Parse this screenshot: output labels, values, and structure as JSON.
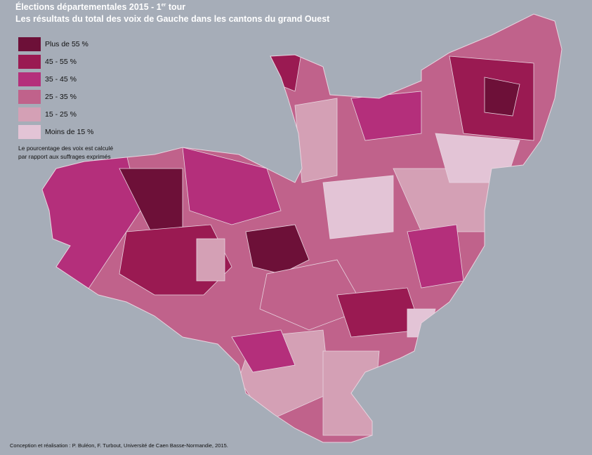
{
  "title": [
    "Élections départementales 2015 - 1",
    "er",
    " tour"
  ],
  "subtitle": "Les résultats du total des voix de Gauche dans les  cantons du grand Ouest",
  "legend": [
    {
      "label": "Plus de 55 %",
      "color": "#6d1038"
    },
    {
      "label": "45 - 55 %",
      "color": "#9a1a52"
    },
    {
      "label": "35 - 45 %",
      "color": "#b42f7b"
    },
    {
      "label": "25 - 35 %",
      "color": "#c0628b"
    },
    {
      "label": "15 - 25 %",
      "color": "#d4a0b5"
    },
    {
      "label": "Moins de 15 %",
      "color": "#e3c4d6"
    }
  ],
  "note": [
    "Le pourcentage des voix est calculé",
    "par rapport aux suffrages exprimés"
  ],
  "credit": "Conception et réalisation : P. Buléon, F. Turbout, Université de Caen Basse-Normandie, 2015."
}
